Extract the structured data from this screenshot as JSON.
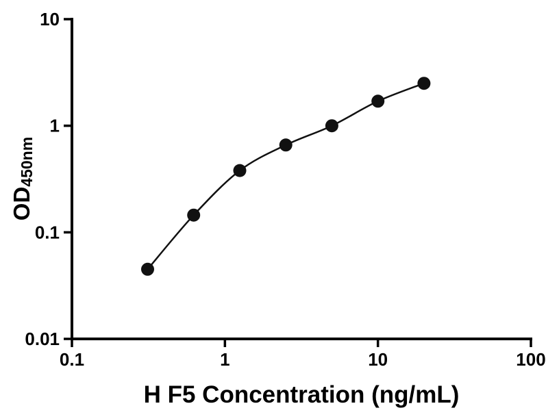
{
  "figure": {
    "ylabel_main": "OD",
    "ylabel_sub": "450nm"
  },
  "chart_data": {
    "type": "scatter",
    "title": "",
    "xlabel": "H F5 Concentration (ng/mL)",
    "ylabel": "OD450nm",
    "x_scale": "log",
    "y_scale": "log",
    "xlim": [
      0.1,
      100
    ],
    "ylim": [
      0.01,
      10
    ],
    "x_ticks": [
      0.1,
      1,
      10,
      100
    ],
    "y_ticks": [
      0.01,
      0.1,
      1,
      10
    ],
    "x_tick_labels": [
      "0.1",
      "1",
      "10",
      "100"
    ],
    "y_tick_labels": [
      "0.01",
      "0.1",
      "1",
      "10"
    ],
    "x": [
      0.3125,
      0.625,
      1.25,
      2.5,
      5,
      10,
      20
    ],
    "y": [
      0.045,
      0.145,
      0.38,
      0.66,
      1.0,
      1.7,
      2.5
    ],
    "grid": false,
    "legend": false,
    "curve": "smooth-fit",
    "marker_color": "#111111",
    "line_color": "#111111",
    "axis_color": "#000000"
  }
}
